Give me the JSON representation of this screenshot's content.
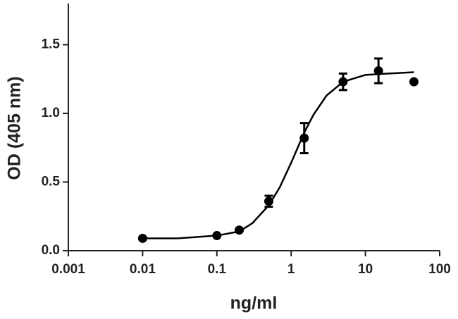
{
  "chart_data": {
    "type": "scatter",
    "xlabel": "ng/ml",
    "ylabel": "OD (405 nm)",
    "xlog": true,
    "xlim": [
      0.001,
      100
    ],
    "xticks": [
      0.001,
      0.01,
      0.1,
      1,
      10,
      100
    ],
    "ylim": [
      0,
      1.8
    ],
    "yticks": [
      {
        "value": 0,
        "label": "0.0"
      },
      0.5,
      {
        "value": 1,
        "label": "1.0"
      },
      1.5
    ],
    "points": {
      "color": "#000000",
      "x": [
        0.01,
        0.1,
        0.2,
        0.5,
        1.5,
        5,
        15,
        45
      ],
      "values": [
        0.09,
        0.11,
        0.15,
        0.36,
        0.82,
        1.23,
        1.31,
        1.23
      ],
      "errors": [
        null,
        null,
        null,
        0.04,
        0.11,
        0.06,
        0.09,
        null
      ]
    },
    "curve": {
      "color": "#000000",
      "x": [
        0.01,
        0.03,
        0.1,
        0.2,
        0.3,
        0.5,
        0.7,
        1,
        1.5,
        2,
        3,
        5,
        10,
        20,
        45
      ],
      "values": [
        0.09,
        0.09,
        0.11,
        0.14,
        0.2,
        0.33,
        0.46,
        0.64,
        0.86,
        0.99,
        1.13,
        1.23,
        1.28,
        1.29,
        1.3
      ]
    }
  }
}
